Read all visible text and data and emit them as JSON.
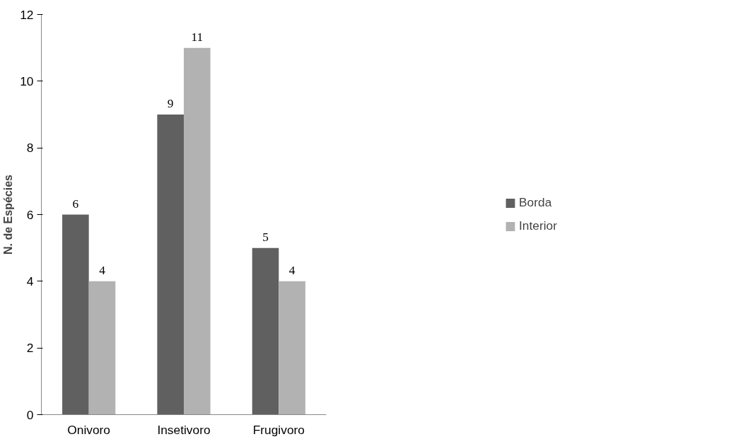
{
  "chart_data": {
    "type": "bar",
    "ylabel": "N. de Espécies",
    "categories": [
      "Onivoro",
      "Insetivoro",
      "Frugivoro"
    ],
    "series": [
      {
        "name": "Borda",
        "color": "#606060",
        "values": [
          6,
          9,
          5
        ]
      },
      {
        "name": "Interior",
        "color": "#b2b2b2",
        "values": [
          4,
          11,
          4
        ]
      }
    ],
    "ylim": [
      0,
      12
    ],
    "yticks": [
      0,
      2,
      4,
      6,
      8,
      10,
      12
    ],
    "grid": false,
    "legend": "right",
    "data_labels": true
  }
}
